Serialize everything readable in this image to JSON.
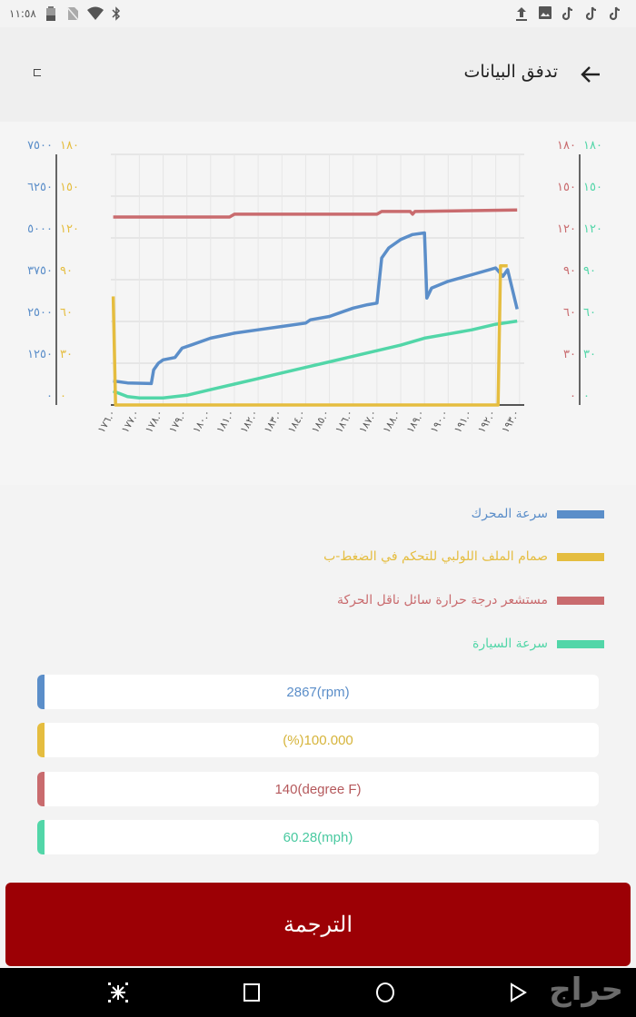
{
  "status_bar": {
    "time": "١١:٥٨",
    "left_icons": [
      "battery-icon",
      "no-sim-icon",
      "wifi-icon",
      "bluetooth-icon"
    ],
    "right_icons": [
      "upload-icon",
      "image-icon",
      "tiktok-icon",
      "tiktok-icon",
      "tiktok-icon"
    ]
  },
  "header": {
    "title": "تدفق البيانات",
    "back_icon": "arrow-left-icon",
    "left_icon": "exit-icon"
  },
  "colors": {
    "rpm": "#5b8ec9",
    "throttle": "#e5bd3f",
    "trans_temp": "#c96b6e",
    "speed": "#52d6a8",
    "button": "#9c0005"
  },
  "chart_data": {
    "type": "line",
    "title": "",
    "xlabel": "",
    "x_tick_labels": [
      "١٧٦.٠",
      "١٧٧.٠",
      "١٧٨.٠",
      "١٧٩.٠",
      "١٨٠.٠",
      "١٨١.٠",
      "١٨٢.٠",
      "١٨٣.٠",
      "١٨٤.٠",
      "١٨٥.٠",
      "١٨٦.٠",
      "١٨٧.٠",
      "١٨٨.٠",
      "١٨٩.٠",
      "١٩٠.٠",
      "١٩١.٠",
      "١٩٢.٠",
      "١٩٣.٠"
    ],
    "x_range": [
      175.8,
      193.2
    ],
    "grid": true,
    "axes": {
      "left_outer": {
        "color": "#5b8ec9",
        "ticks": [
          "٧٥٠٠",
          "٦٢٥٠",
          "٥٠٠٠",
          "٣٧٥٠",
          "٢٥٠٠",
          "١٢٥٠",
          "٠"
        ],
        "range": [
          0,
          7500
        ],
        "series": "سرعة المحرك"
      },
      "left_inner": {
        "color": "#e5bd3f",
        "ticks": [
          "١٨٠",
          "١٥٠",
          "١٢٠",
          "٩٠",
          "٦٠",
          "٣٠",
          "٠"
        ],
        "range": [
          0,
          180
        ],
        "series": "صمام الملف اللولبي للتحكم في الضغط-ب"
      },
      "right_inner": {
        "color": "#c96b6e",
        "ticks": [
          "١٨٠",
          "١٥٠",
          "١٢٠",
          "٩٠",
          "٦٠",
          "٣٠",
          "٠"
        ],
        "range": [
          0,
          180
        ],
        "series": "مستشعر درجة حرارة سائل ناقل الحركة"
      },
      "right_outer": {
        "color": "#52d6a8",
        "ticks": [
          "١٨٠",
          "١٥٠",
          "١٢٠",
          "٩٠",
          "٦٠",
          "٣٠",
          "٠"
        ],
        "range": [
          0,
          180
        ],
        "series": "سرعة السيارة"
      }
    },
    "series": [
      {
        "name": "سرعة المحرك",
        "unit": "rpm",
        "axis_range": [
          0,
          7500
        ],
        "color": "#5b8ec9",
        "x": [
          175.9,
          176.5,
          177.5,
          177.6,
          177.8,
          178.0,
          178.5,
          178.8,
          179.2,
          180.0,
          181.0,
          182.0,
          183.0,
          184.0,
          184.2,
          185.0,
          186.0,
          186.6,
          187.0,
          187.2,
          187.5,
          188.0,
          188.5,
          189.0,
          189.1,
          189.3,
          190.0,
          191.0,
          192.0,
          192.3,
          192.5,
          192.9
        ],
        "values": [
          720,
          660,
          640,
          1050,
          1250,
          1350,
          1420,
          1700,
          1800,
          2000,
          2150,
          2250,
          2350,
          2450,
          2550,
          2650,
          2900,
          3000,
          3050,
          4400,
          4700,
          4950,
          5100,
          5150,
          3200,
          3500,
          3700,
          3900,
          4100,
          3850,
          4050,
          2867
        ]
      },
      {
        "name": "صمام الملف اللولبي للتحكم في الضغط-ب",
        "unit": "%",
        "axis_range": [
          0,
          180
        ],
        "color": "#e5bd3f",
        "x": [
          175.9,
          176.0,
          176.1,
          192.0,
          192.1,
          192.2,
          192.5
        ],
        "values": [
          78,
          0,
          0,
          0,
          0,
          100,
          100
        ]
      },
      {
        "name": "مستشعر درجة حرارة سائل ناقل الحركة",
        "unit": "degree F",
        "axis_range": [
          0,
          180
        ],
        "color": "#c96b6e",
        "x": [
          175.9,
          180.8,
          181.0,
          187.0,
          187.2,
          188.4,
          188.5,
          188.6,
          192.9
        ],
        "values": [
          135,
          135,
          137,
          137,
          139,
          139,
          137,
          139,
          140
        ]
      },
      {
        "name": "سرعة السيارة",
        "unit": "mph",
        "axis_range": [
          0,
          180
        ],
        "color": "#52d6a8",
        "x": [
          175.9,
          176.5,
          177.0,
          178.0,
          179.0,
          180.0,
          181.0,
          182.0,
          183.0,
          184.0,
          185.0,
          186.0,
          187.0,
          188.0,
          189.0,
          190.0,
          191.0,
          192.0,
          192.9
        ],
        "values": [
          10,
          6,
          5,
          5,
          7,
          11,
          15,
          19,
          23,
          27,
          31,
          35,
          39,
          43,
          48,
          51,
          54,
          58,
          60.28
        ]
      }
    ]
  },
  "legend": [
    {
      "label": "سرعة المحرك",
      "color": "#5b8ec9"
    },
    {
      "label": "صمام الملف اللولبي للتحكم في الضغط-ب",
      "color": "#e5bd3f"
    },
    {
      "label": "مستشعر درجة حرارة سائل ناقل الحركة",
      "color": "#c96b6e"
    },
    {
      "label": "سرعة السيارة",
      "color": "#52d6a8"
    }
  ],
  "values": [
    {
      "text": "2867(rpm)",
      "color": "#5b8ec9"
    },
    {
      "text": "(%)100.000",
      "color": "#d6b43a"
    },
    {
      "text": "140(degree F)",
      "color": "#b5595c"
    },
    {
      "text": "60.28(mph)",
      "color": "#49c9a0"
    }
  ],
  "button": {
    "label": "الترجمة"
  },
  "nav_bar": {
    "buttons": [
      "screenshot-icon",
      "recents-icon",
      "home-icon",
      "back-icon"
    ],
    "watermark": "حراج"
  }
}
